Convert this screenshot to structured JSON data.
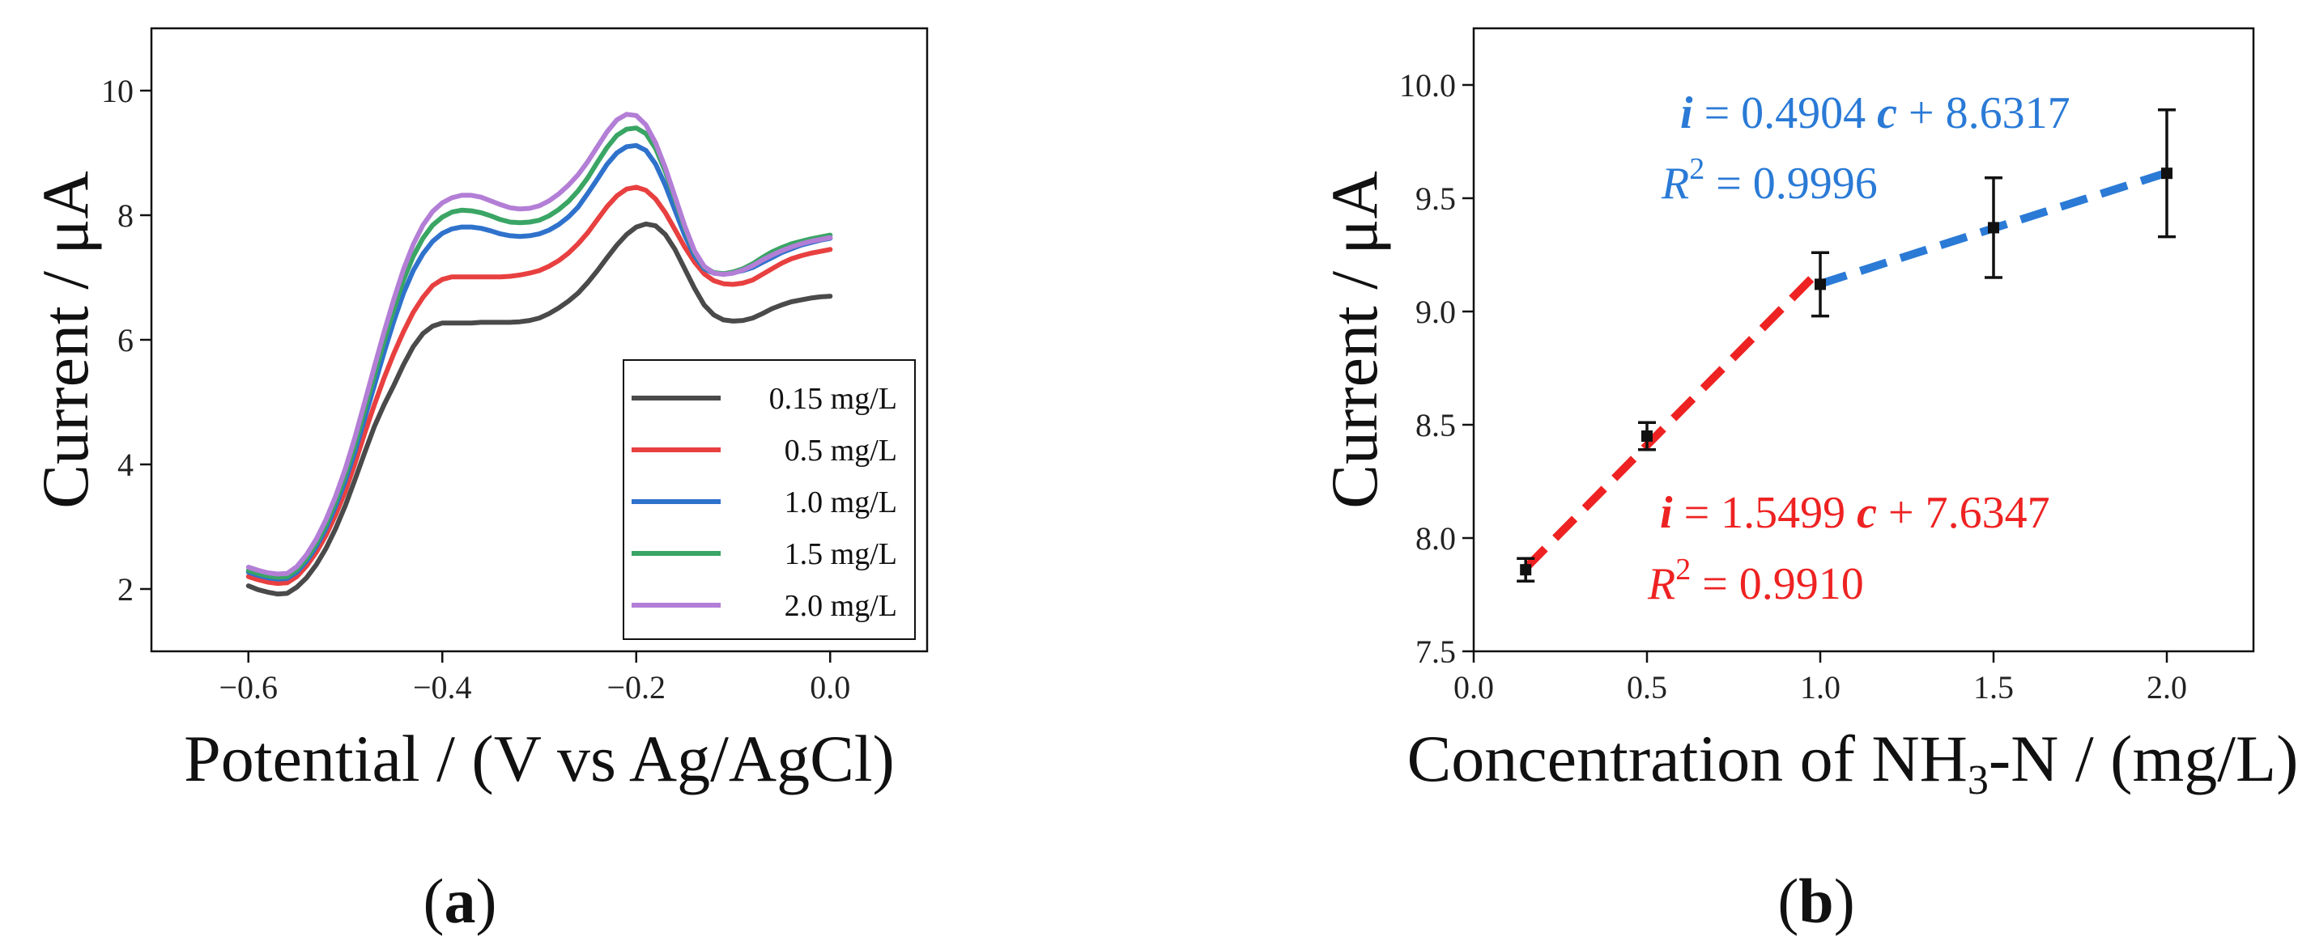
{
  "chart_data": [
    {
      "type": "line",
      "panel": "a",
      "panel_label": "(a)",
      "panel_label_parts": [
        "(",
        "a",
        ")"
      ],
      "xlabel": "Potential / (V vs Ag/AgCl)",
      "ylabel": "Current / μA",
      "xlim": [
        -0.7,
        0.1
      ],
      "ylim": [
        1,
        11
      ],
      "xticks": [
        -0.6,
        -0.4,
        -0.2,
        0.0
      ],
      "xtick_labels": [
        "−0.6",
        "−0.4",
        "−0.2",
        "0.0"
      ],
      "yticks": [
        2,
        4,
        6,
        8,
        10
      ],
      "ytick_labels": [
        "2",
        "4",
        "6",
        "8",
        "10"
      ],
      "legend_position": "bottom-right",
      "series": [
        {
          "name": "0.15 mg/L",
          "color": "#4a4a4a",
          "x": [
            -0.6,
            -0.59,
            -0.58,
            -0.57,
            -0.56,
            -0.55,
            -0.54,
            -0.53,
            -0.52,
            -0.51,
            -0.5,
            -0.49,
            -0.48,
            -0.47,
            -0.46,
            -0.45,
            -0.44,
            -0.43,
            -0.42,
            -0.41,
            -0.4,
            -0.39,
            -0.38,
            -0.37,
            -0.36,
            -0.35,
            -0.34,
            -0.33,
            -0.32,
            -0.31,
            -0.3,
            -0.29,
            -0.28,
            -0.27,
            -0.26,
            -0.25,
            -0.24,
            -0.23,
            -0.22,
            -0.21,
            -0.2,
            -0.19,
            -0.18,
            -0.17,
            -0.16,
            -0.15,
            -0.14,
            -0.13,
            -0.12,
            -0.11,
            -0.1,
            -0.09,
            -0.08,
            -0.07,
            -0.06,
            -0.05,
            -0.04,
            -0.03,
            -0.02,
            -0.01,
            0.0
          ],
          "values": [
            2.05,
            1.99,
            1.95,
            1.92,
            1.93,
            2.03,
            2.18,
            2.39,
            2.65,
            2.97,
            3.34,
            3.76,
            4.19,
            4.61,
            4.96,
            5.27,
            5.6,
            5.89,
            6.1,
            6.22,
            6.27,
            6.27,
            6.27,
            6.27,
            6.28,
            6.28,
            6.28,
            6.28,
            6.29,
            6.31,
            6.35,
            6.42,
            6.51,
            6.62,
            6.75,
            6.92,
            7.11,
            7.32,
            7.52,
            7.69,
            7.81,
            7.86,
            7.83,
            7.69,
            7.45,
            7.14,
            6.83,
            6.56,
            6.4,
            6.32,
            6.3,
            6.31,
            6.35,
            6.42,
            6.5,
            6.56,
            6.61,
            6.64,
            6.67,
            6.69,
            6.7
          ]
        },
        {
          "name": "0.5 mg/L",
          "color": "#e84040",
          "x": [
            -0.6,
            -0.59,
            -0.58,
            -0.57,
            -0.56,
            -0.55,
            -0.54,
            -0.53,
            -0.52,
            -0.51,
            -0.5,
            -0.49,
            -0.48,
            -0.47,
            -0.46,
            -0.45,
            -0.44,
            -0.43,
            -0.42,
            -0.41,
            -0.4,
            -0.39,
            -0.38,
            -0.37,
            -0.36,
            -0.35,
            -0.34,
            -0.33,
            -0.32,
            -0.31,
            -0.3,
            -0.29,
            -0.28,
            -0.27,
            -0.26,
            -0.25,
            -0.24,
            -0.23,
            -0.22,
            -0.21,
            -0.2,
            -0.19,
            -0.18,
            -0.17,
            -0.16,
            -0.15,
            -0.14,
            -0.13,
            -0.12,
            -0.11,
            -0.1,
            -0.09,
            -0.08,
            -0.07,
            -0.06,
            -0.05,
            -0.04,
            -0.03,
            -0.02,
            -0.01,
            0.0
          ],
          "values": [
            2.2,
            2.15,
            2.11,
            2.09,
            2.1,
            2.2,
            2.37,
            2.59,
            2.86,
            3.19,
            3.57,
            4.02,
            4.5,
            4.96,
            5.39,
            5.78,
            6.13,
            6.44,
            6.68,
            6.87,
            6.97,
            7.01,
            7.01,
            7.01,
            7.01,
            7.01,
            7.01,
            7.02,
            7.04,
            7.07,
            7.11,
            7.18,
            7.27,
            7.39,
            7.54,
            7.72,
            7.93,
            8.14,
            8.31,
            8.42,
            8.45,
            8.4,
            8.26,
            8.04,
            7.77,
            7.49,
            7.25,
            7.06,
            6.95,
            6.9,
            6.89,
            6.91,
            6.96,
            7.05,
            7.14,
            7.23,
            7.3,
            7.35,
            7.39,
            7.42,
            7.45
          ]
        },
        {
          "name": "1.0 mg/L",
          "color": "#2f72cc",
          "x": [
            -0.6,
            -0.59,
            -0.58,
            -0.57,
            -0.56,
            -0.55,
            -0.54,
            -0.53,
            -0.52,
            -0.51,
            -0.5,
            -0.49,
            -0.48,
            -0.47,
            -0.46,
            -0.45,
            -0.44,
            -0.43,
            -0.42,
            -0.41,
            -0.4,
            -0.39,
            -0.38,
            -0.37,
            -0.36,
            -0.35,
            -0.34,
            -0.33,
            -0.32,
            -0.31,
            -0.3,
            -0.29,
            -0.28,
            -0.27,
            -0.26,
            -0.25,
            -0.24,
            -0.23,
            -0.22,
            -0.21,
            -0.2,
            -0.19,
            -0.18,
            -0.17,
            -0.16,
            -0.15,
            -0.14,
            -0.13,
            -0.12,
            -0.11,
            -0.1,
            -0.09,
            -0.08,
            -0.07,
            -0.06,
            -0.05,
            -0.04,
            -0.03,
            -0.02,
            -0.01,
            0.0
          ],
          "values": [
            2.27,
            2.22,
            2.18,
            2.16,
            2.17,
            2.27,
            2.45,
            2.68,
            2.97,
            3.33,
            3.74,
            4.21,
            4.74,
            5.27,
            5.8,
            6.3,
            6.75,
            7.11,
            7.38,
            7.58,
            7.71,
            7.78,
            7.81,
            7.81,
            7.79,
            7.75,
            7.7,
            7.67,
            7.66,
            7.67,
            7.7,
            7.76,
            7.85,
            7.97,
            8.13,
            8.35,
            8.58,
            8.82,
            9.0,
            9.1,
            9.12,
            9.04,
            8.82,
            8.48,
            8.08,
            7.68,
            7.35,
            7.14,
            7.07,
            7.06,
            7.08,
            7.11,
            7.16,
            7.24,
            7.32,
            7.4,
            7.46,
            7.52,
            7.56,
            7.6,
            7.63
          ]
        },
        {
          "name": "1.5 mg/L",
          "color": "#3aa564",
          "x": [
            -0.6,
            -0.59,
            -0.58,
            -0.57,
            -0.56,
            -0.55,
            -0.54,
            -0.53,
            -0.52,
            -0.51,
            -0.5,
            -0.49,
            -0.48,
            -0.47,
            -0.46,
            -0.45,
            -0.44,
            -0.43,
            -0.42,
            -0.41,
            -0.4,
            -0.39,
            -0.38,
            -0.37,
            -0.36,
            -0.35,
            -0.34,
            -0.33,
            -0.32,
            -0.31,
            -0.3,
            -0.29,
            -0.28,
            -0.27,
            -0.26,
            -0.25,
            -0.24,
            -0.23,
            -0.22,
            -0.21,
            -0.2,
            -0.19,
            -0.18,
            -0.17,
            -0.16,
            -0.15,
            -0.14,
            -0.13,
            -0.12,
            -0.11,
            -0.1,
            -0.09,
            -0.08,
            -0.07,
            -0.06,
            -0.05,
            -0.04,
            -0.03,
            -0.02,
            -0.01,
            0.0
          ],
          "values": [
            2.3,
            2.25,
            2.21,
            2.19,
            2.2,
            2.31,
            2.49,
            2.73,
            3.03,
            3.4,
            3.83,
            4.32,
            4.87,
            5.43,
            5.98,
            6.49,
            6.96,
            7.34,
            7.63,
            7.84,
            7.97,
            8.05,
            8.08,
            8.07,
            8.04,
            7.99,
            7.93,
            7.89,
            7.88,
            7.89,
            7.92,
            7.99,
            8.09,
            8.22,
            8.39,
            8.6,
            8.85,
            9.09,
            9.28,
            9.38,
            9.4,
            9.31,
            9.07,
            8.7,
            8.26,
            7.8,
            7.41,
            7.17,
            7.08,
            7.06,
            7.09,
            7.14,
            7.22,
            7.32,
            7.41,
            7.48,
            7.54,
            7.58,
            7.62,
            7.65,
            7.68
          ]
        },
        {
          "name": "2.0 mg/L",
          "color": "#b37ed6",
          "x": [
            -0.6,
            -0.59,
            -0.58,
            -0.57,
            -0.56,
            -0.55,
            -0.54,
            -0.53,
            -0.52,
            -0.51,
            -0.5,
            -0.49,
            -0.48,
            -0.47,
            -0.46,
            -0.45,
            -0.44,
            -0.43,
            -0.42,
            -0.41,
            -0.4,
            -0.39,
            -0.38,
            -0.37,
            -0.36,
            -0.35,
            -0.34,
            -0.33,
            -0.32,
            -0.31,
            -0.3,
            -0.29,
            -0.28,
            -0.27,
            -0.26,
            -0.25,
            -0.24,
            -0.23,
            -0.22,
            -0.21,
            -0.2,
            -0.19,
            -0.18,
            -0.17,
            -0.16,
            -0.15,
            -0.14,
            -0.13,
            -0.12,
            -0.11,
            -0.1,
            -0.09,
            -0.08,
            -0.07,
            -0.06,
            -0.05,
            -0.04,
            -0.03,
            -0.02,
            -0.01,
            0.0
          ],
          "values": [
            2.35,
            2.3,
            2.26,
            2.24,
            2.25,
            2.36,
            2.55,
            2.8,
            3.11,
            3.49,
            3.93,
            4.44,
            5.0,
            5.57,
            6.13,
            6.65,
            7.13,
            7.53,
            7.84,
            8.06,
            8.2,
            8.28,
            8.32,
            8.32,
            8.29,
            8.23,
            8.17,
            8.12,
            8.1,
            8.11,
            8.15,
            8.23,
            8.34,
            8.48,
            8.65,
            8.86,
            9.1,
            9.34,
            9.53,
            9.62,
            9.6,
            9.45,
            9.16,
            8.76,
            8.3,
            7.83,
            7.43,
            7.18,
            7.07,
            7.05,
            7.07,
            7.12,
            7.19,
            7.28,
            7.36,
            7.43,
            7.49,
            7.54,
            7.58,
            7.61,
            7.64
          ]
        }
      ]
    },
    {
      "type": "scatter",
      "panel": "b",
      "panel_label": "(b)",
      "panel_label_parts": [
        "(",
        "b",
        ")"
      ],
      "xlabel": "Concentration of NH3-N / (mg/L)",
      "xlabel_parts": [
        "Concentration of NH",
        "3",
        "-N / (mg/L)"
      ],
      "ylabel": "Current / μA",
      "xlim": [
        0.0,
        2.25
      ],
      "ylim": [
        7.5,
        10.25
      ],
      "xticks": [
        0.0,
        0.5,
        1.0,
        1.5,
        2.0
      ],
      "xtick_labels": [
        "0.0",
        "0.5",
        "1.0",
        "1.5",
        "2.0"
      ],
      "yticks": [
        7.5,
        8.0,
        8.5,
        9.0,
        9.5,
        10.0
      ],
      "ytick_labels": [
        "7.5",
        "8.0",
        "8.5",
        "9.0",
        "9.5",
        "10.0"
      ],
      "points": {
        "x": [
          0.15,
          0.5,
          1.0,
          1.5,
          2.0
        ],
        "y": [
          7.86,
          8.45,
          9.12,
          9.37,
          9.61
        ],
        "error": [
          0.05,
          0.06,
          0.14,
          0.22,
          0.28
        ]
      },
      "fits": [
        {
          "name": "low range fit",
          "color": "#ee2222",
          "slope": 1.5499,
          "intercept": 7.6347,
          "x_range": [
            0.15,
            1.0
          ],
          "equation_parts": [
            "i",
            " = 1.5499 ",
            "c",
            " + 7.6347"
          ],
          "r2_parts": [
            "R",
            "2",
            " = 0.9910"
          ],
          "annotation_position": "lower-middle"
        },
        {
          "name": "high range fit",
          "color": "#2a7ad6",
          "slope": 0.4904,
          "intercept": 8.6317,
          "x_range": [
            1.0,
            2.0
          ],
          "equation_parts": [
            "i",
            " = 0.4904 ",
            "c",
            " + 8.6317"
          ],
          "r2_parts": [
            "R",
            "2",
            " = 0.9996"
          ],
          "annotation_position": "upper-middle"
        }
      ]
    }
  ]
}
